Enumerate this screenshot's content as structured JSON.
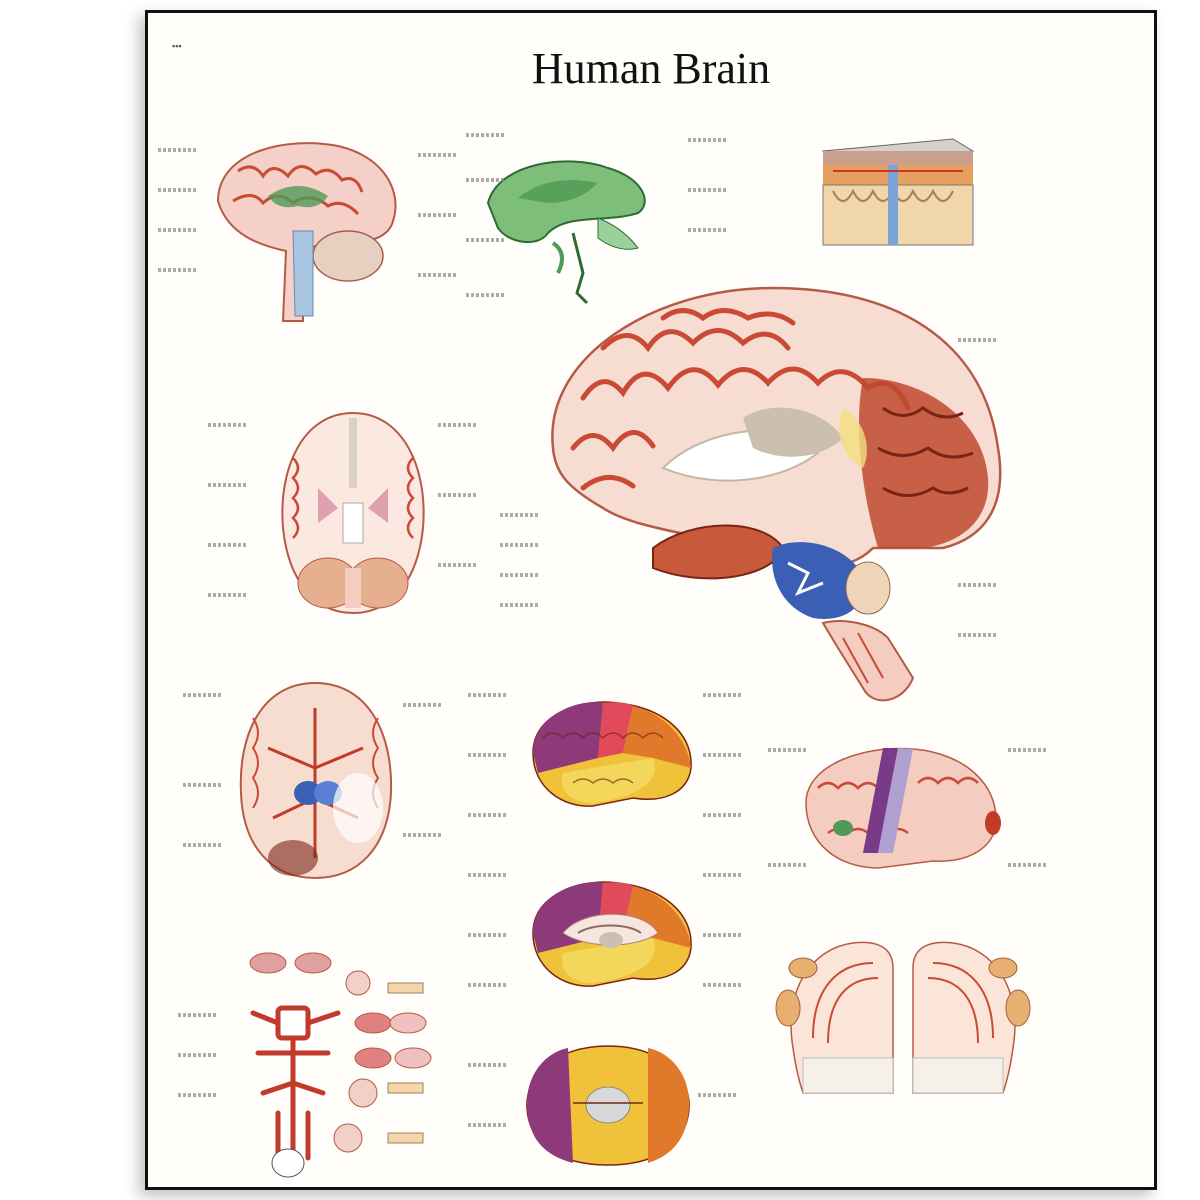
{
  "poster": {
    "title": "Human Brain",
    "accent_colors": {
      "cortex": "#f4d0c8",
      "gyri": "#c94a35",
      "ventricle": "#4f9a56",
      "blood": "#c23a2a",
      "frontal": "#8e3a7a",
      "parietal": "#f0c23a",
      "occipital": "#e07a2a",
      "temporal": "#f2d75a",
      "cerebellum": "#3a5fb5"
    },
    "panels": [
      {
        "id": "medial-section",
        "icon": "brain-sagittal-icon"
      },
      {
        "id": "ventricular-system",
        "icon": "ventricle-icon"
      },
      {
        "id": "meninges",
        "icon": "meninges-block-icon"
      },
      {
        "id": "large-sagittal-brain",
        "icon": "brain-large-icon"
      },
      {
        "id": "horizontal-section",
        "icon": "brain-horizontal-icon"
      },
      {
        "id": "arterial-supply",
        "icon": "brain-basal-arteries-icon"
      },
      {
        "id": "lateral-hemisphere",
        "icon": "brain-lateral-colored-icon"
      },
      {
        "id": "medial-hemisphere",
        "icon": "brain-medial-colored-icon"
      },
      {
        "id": "speech-centers",
        "icon": "brain-speech-areas-icon"
      },
      {
        "id": "arterial-schematic",
        "icon": "artery-schematic-icon"
      },
      {
        "id": "somatotopy",
        "icon": "homunculus-section-icon"
      },
      {
        "id": "basal-view",
        "icon": "brain-basal-colored-icon"
      }
    ]
  }
}
